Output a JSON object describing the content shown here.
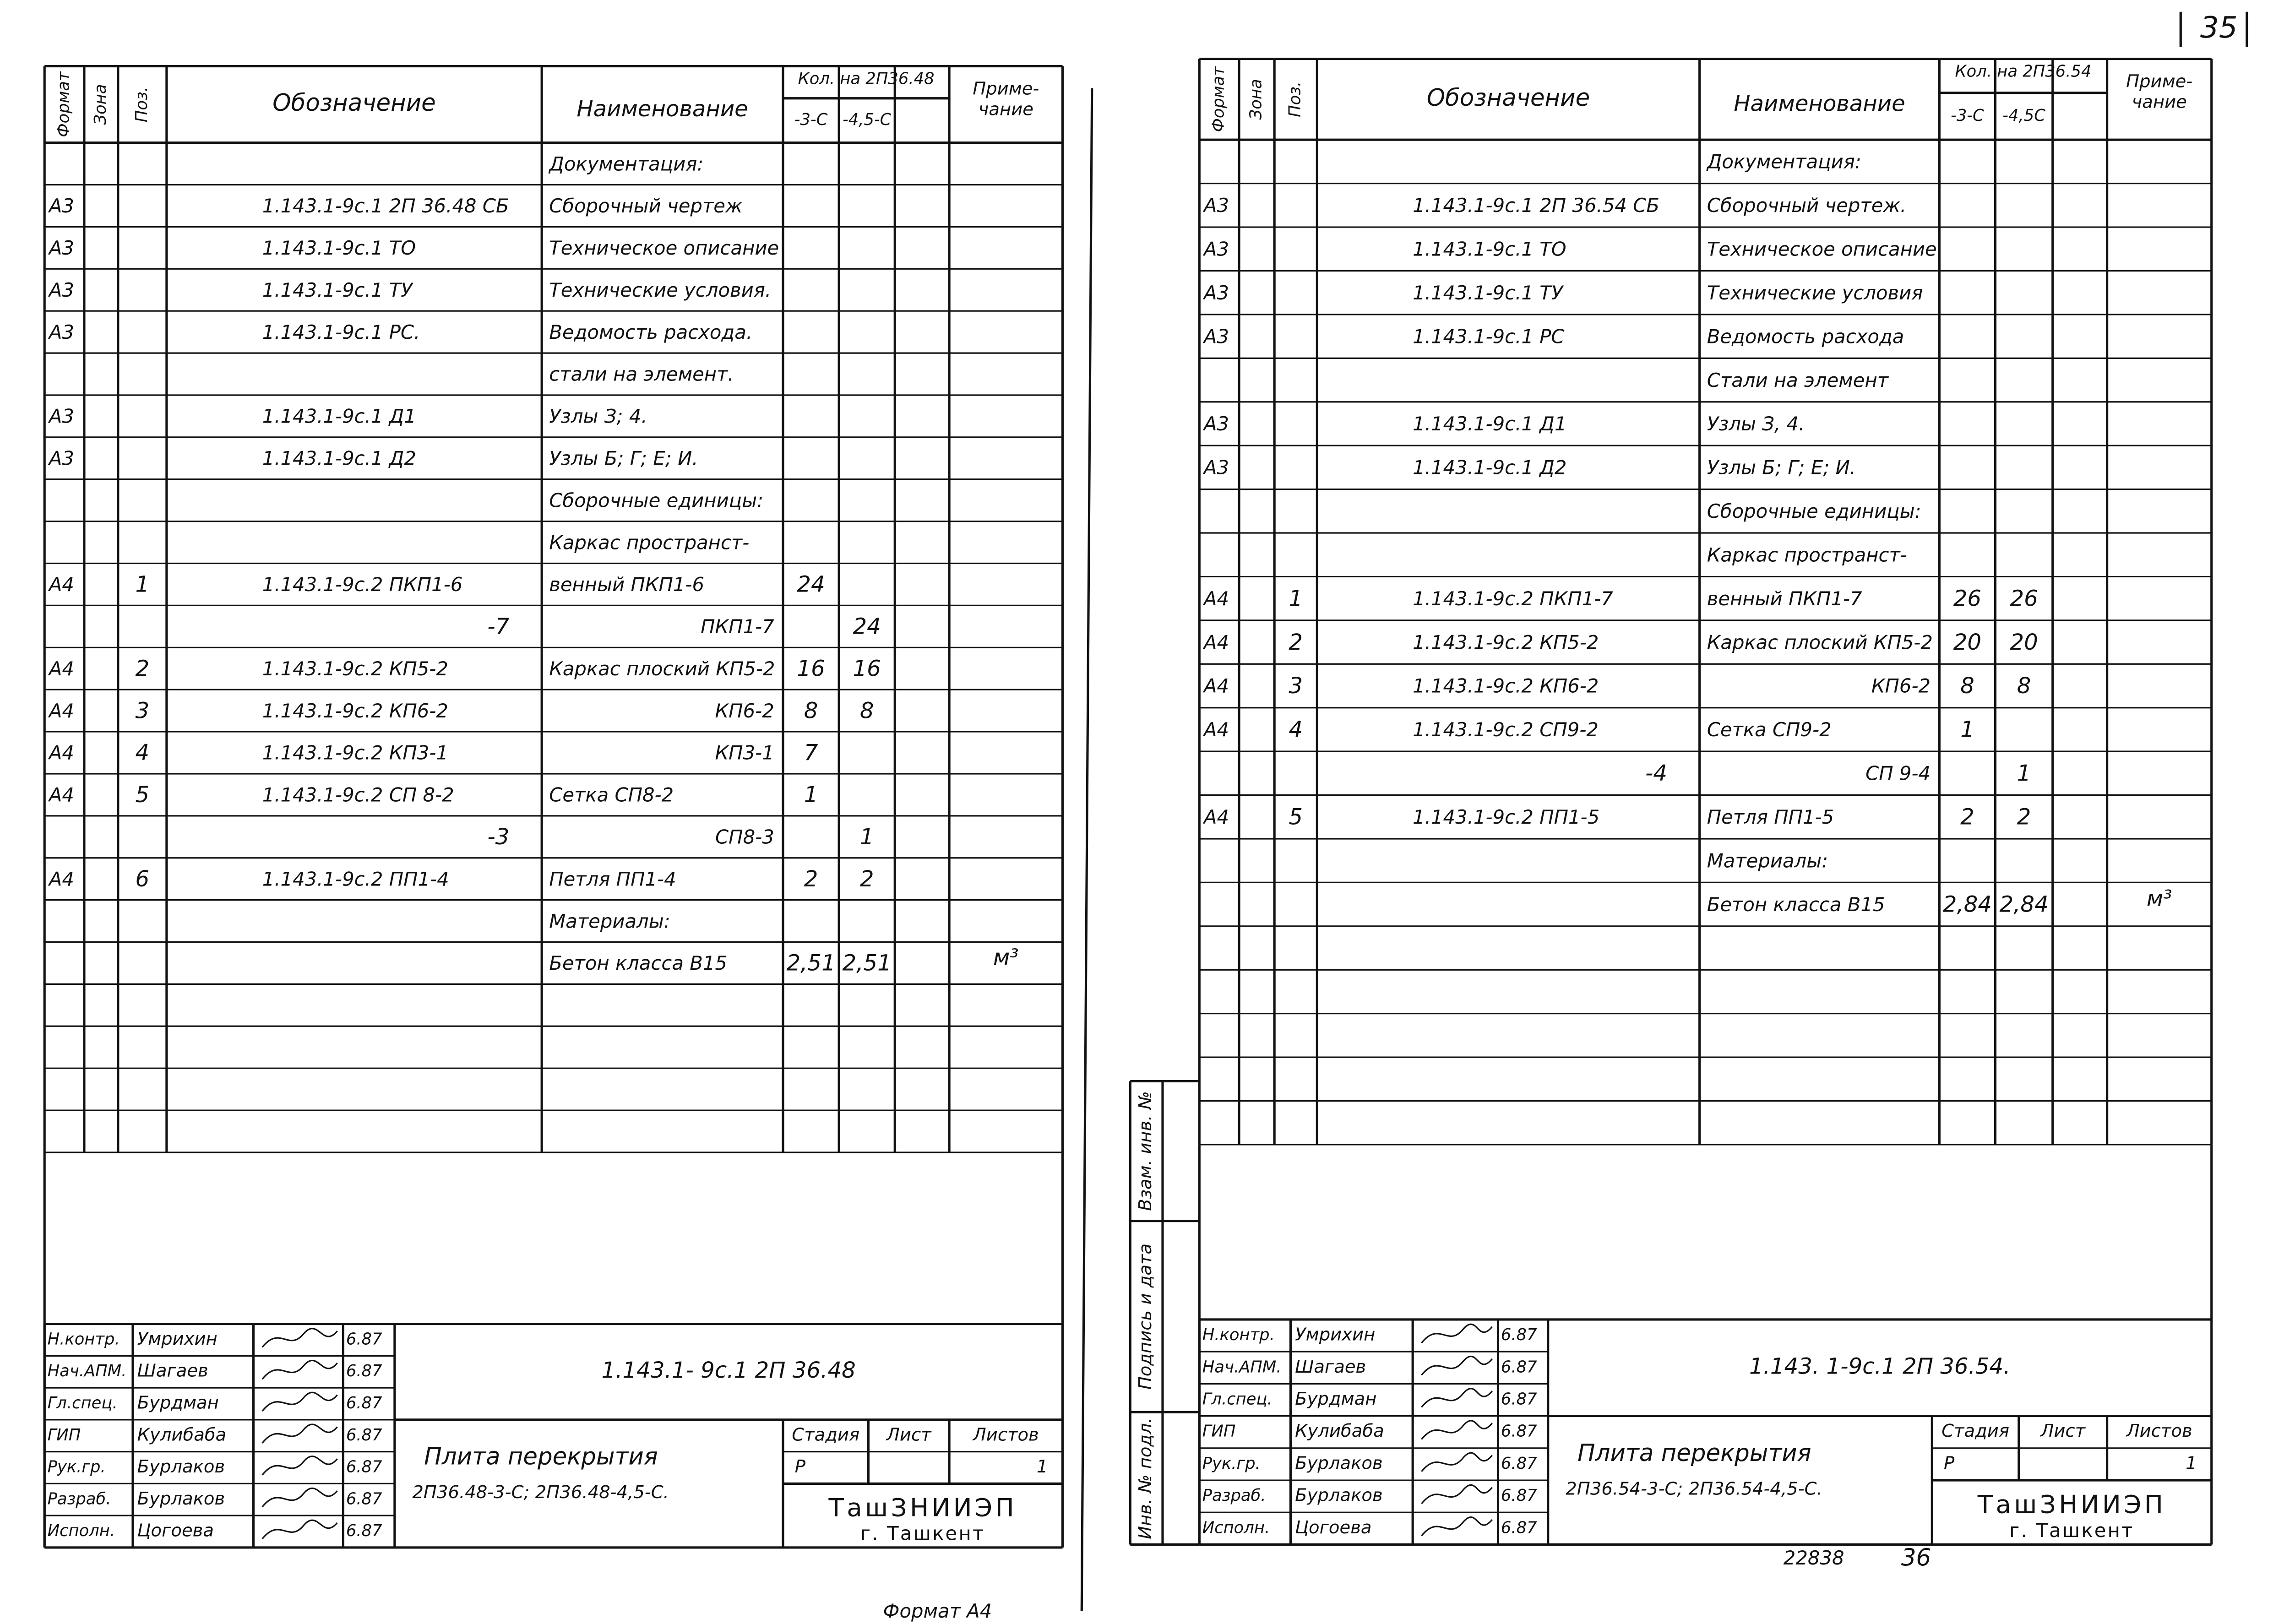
{
  "page_number": "35",
  "sheets": [
    {
      "header": {
        "format": "Формат",
        "zone": "Зона",
        "pos": "Поз.",
        "designation": "Обозначение",
        "name": "Наименование",
        "qty": "Кол. на 2П36.48",
        "qty_1": "-3-С",
        "qty_2": "-4,5-С",
        "note": [
          "Приме-",
          "чание"
        ]
      },
      "rows": [
        {
          "name": "Документация:"
        },
        {
          "format": "А3",
          "designation": "1.143.1-9с.1 2П 36.48 СБ",
          "name": "Сборочный чертеж"
        },
        {
          "format": "А3",
          "designation": "1.143.1-9с.1 ТО",
          "name": "Техническое описание"
        },
        {
          "format": "А3",
          "designation": "1.143.1-9с.1 ТУ",
          "name": "Технические условия."
        },
        {
          "format": "А3",
          "designation": "1.143.1-9с.1 РС.",
          "name": "Ведомость расхода."
        },
        {
          "name": "стали на элемент."
        },
        {
          "format": "А3",
          "designation": "1.143.1-9с.1 Д1",
          "name": "Узлы З; 4."
        },
        {
          "format": "А3",
          "designation": "1.143.1-9с.1 Д2",
          "name": "Узлы Б; Г; Е; И."
        },
        {
          "name": "Сборочные единицы:"
        },
        {
          "name": "Каркас пространст-"
        },
        {
          "format": "А4",
          "pos": "1",
          "designation": "1.143.1-9с.2 ПКП1-6",
          "name": "венный ПКП1-6",
          "q1": "24"
        },
        {
          "designation": "-7",
          "name": "ПКП1-7",
          "q2": "24"
        },
        {
          "format": "А4",
          "pos": "2",
          "designation": "1.143.1-9с.2 КП5-2",
          "name": "Каркас плоский КП5-2",
          "q1": "16",
          "q2": "16"
        },
        {
          "format": "А4",
          "pos": "3",
          "designation": "1.143.1-9с.2 КП6-2",
          "name": "КП6-2",
          "q1": "8",
          "q2": "8"
        },
        {
          "format": "А4",
          "pos": "4",
          "designation": "1.143.1-9с.2 КП3-1",
          "name": "КП3-1",
          "q1": "7"
        },
        {
          "format": "А4",
          "pos": "5",
          "designation": "1.143.1-9с.2 СП 8-2",
          "name": "Сетка СП8-2",
          "q1": "1"
        },
        {
          "designation": "-3",
          "name": "СП8-3",
          "q2": "1"
        },
        {
          "format": "А4",
          "pos": "6",
          "designation": "1.143.1-9с.2 ПП1-4",
          "name": "Петля ПП1-4",
          "q1": "2",
          "q2": "2"
        },
        {
          "name": "Материалы:"
        },
        {
          "name": "Бетон класса В15",
          "q1": "2,51",
          "q2": "2,51",
          "note": "м³"
        }
      ],
      "title_block": {
        "signatures": [
          {
            "role": "Н.контр.",
            "name": "Умрихин",
            "date": "6.87"
          },
          {
            "role": "Нач.АПМ.",
            "name": "Шагаев",
            "date": "6.87"
          },
          {
            "role": "Гл.спец.",
            "name": "Бурдман",
            "date": "6.87"
          },
          {
            "role": "ГИП",
            "name": "Кулибаба",
            "date": "6.87"
          },
          {
            "role": "Рук.гр.",
            "name": "Бурлаков",
            "date": "6.87"
          },
          {
            "role": "Разраб.",
            "name": "Бурлаков",
            "date": "6.87"
          },
          {
            "role": "Исполн.",
            "name": "Цогоева",
            "date": "6.87"
          }
        ],
        "code": "1.143.1- 9с.1 2П 36.48",
        "title": "Плита перекрытия",
        "subtitle": "2П36.48-3-С; 2П36.48-4,5-С.",
        "stage_label": "Стадия",
        "sheet_label": "Лист",
        "sheets_label": "Листов",
        "stage": "Р",
        "sheet_count": "1",
        "org": "ТашЗНИИЭП",
        "city": "г. Ташкент"
      }
    },
    {
      "header": {
        "format": "Формат",
        "zone": "Зона",
        "pos": "Поз.",
        "designation": "Обозначение",
        "name": "Наименование",
        "qty": "Кол. на 2П36.54",
        "qty_1": "-3-С",
        "qty_2": "-4,5С",
        "note": [
          "Приме-",
          "чание"
        ]
      },
      "rows": [
        {
          "name": "Документация:"
        },
        {
          "format": "А3",
          "designation": "1.143.1-9с.1 2П 36.54 СБ",
          "name": "Сборочный чертеж."
        },
        {
          "format": "А3",
          "designation": "1.143.1-9с.1 ТО",
          "name": "Техническое описание"
        },
        {
          "format": "А3",
          "designation": "1.143.1-9с.1 ТУ",
          "name": "Технические условия"
        },
        {
          "format": "А3",
          "designation": "1.143.1-9с.1 РС",
          "name": "Ведомость расхода"
        },
        {
          "name": "Стали на элемент"
        },
        {
          "format": "А3",
          "designation": "1.143.1-9с.1 Д1",
          "name": "Узлы З, 4."
        },
        {
          "format": "А3",
          "designation": "1.143.1-9с.1 Д2",
          "name": "Узлы Б; Г; Е; И."
        },
        {
          "name": "Сборочные единицы:"
        },
        {
          "name": "Каркас пространст-"
        },
        {
          "format": "А4",
          "pos": "1",
          "designation": "1.143.1-9с.2 ПКП1-7",
          "name": "венный ПКП1-7",
          "q1": "26",
          "q2": "26"
        },
        {
          "format": "А4",
          "pos": "2",
          "designation": "1.143.1-9с.2 КП5-2",
          "name": "Каркас плоский КП5-2",
          "q1": "20",
          "q2": "20"
        },
        {
          "format": "А4",
          "pos": "3",
          "designation": "1.143.1-9с.2 КП6-2",
          "name": "КП6-2",
          "q1": "8",
          "q2": "8"
        },
        {
          "format": "А4",
          "pos": "4",
          "designation": "1.143.1-9с.2 СП9-2",
          "name": "Сетка СП9-2",
          "q1": "1"
        },
        {
          "designation": "-4",
          "name": "СП 9-4",
          "q2": "1"
        },
        {
          "format": "А4",
          "pos": "5",
          "designation": "1.143.1-9с.2 ПП1-5",
          "name": "Петля ПП1-5",
          "q1": "2",
          "q2": "2"
        },
        {
          "name": "Материалы:"
        },
        {
          "name": "Бетон класса В15",
          "q1": "2,84",
          "q2": "2,84",
          "note": "м³"
        }
      ],
      "title_block": {
        "signatures": [
          {
            "role": "Н.контр.",
            "name": "Умрихин",
            "date": "6.87"
          },
          {
            "role": "Нач.АПМ.",
            "name": "Шагаев",
            "date": "6.87"
          },
          {
            "role": "Гл.спец.",
            "name": "Бурдман",
            "date": "6.87"
          },
          {
            "role": "ГИП",
            "name": "Кулибаба",
            "date": "6.87"
          },
          {
            "role": "Рук.гр.",
            "name": "Бурлаков",
            "date": "6.87"
          },
          {
            "role": "Разраб.",
            "name": "Бурлаков",
            "date": "6.87"
          },
          {
            "role": "Исполн.",
            "name": "Цогоева",
            "date": "6.87"
          }
        ],
        "code": "1.143. 1-9с.1 2П 36.54.",
        "title": "Плита перекрытия",
        "subtitle": "2П36.54-3-С; 2П36.54-4,5-С.",
        "stage_label": "Стадия",
        "sheet_label": "Лист",
        "sheets_label": "Листов",
        "stage": "Р",
        "sheet_count": "1",
        "org": "ТашЗНИИЭП",
        "city": "г. Ташкент"
      }
    }
  ],
  "side_stamp": {
    "inv_original": "Инв. № подл.",
    "signature_date": "Подпись и дата",
    "replaced_inv": "Взам. инв. №"
  },
  "footer": {
    "format": "Формат А4",
    "archive_number": "22838",
    "page": "36"
  }
}
